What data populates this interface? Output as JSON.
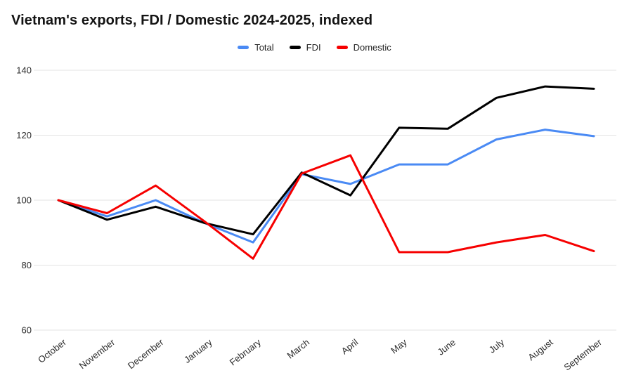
{
  "title": "Vietnam's exports, FDI / Domestic 2024-2025, indexed",
  "colors": {
    "background": "#ffffff",
    "grid": "#e3e3e3",
    "tick": "#2b2b2b",
    "title": "#141414",
    "total": "#4a8af4",
    "fdi": "#000000",
    "domestic": "#f60000"
  },
  "chart_data": {
    "type": "line",
    "title": "Vietnam's exports, FDI / Domestic 2024-2025, indexed",
    "xlabel": "",
    "ylabel": "",
    "categories": [
      "October",
      "November",
      "December",
      "January",
      "February",
      "March",
      "April",
      "May",
      "June",
      "July",
      "August",
      "September"
    ],
    "series": [
      {
        "name": "Total",
        "color": "#4a8af4",
        "values": [
          100,
          95,
          100,
          93,
          87,
          108,
          105,
          111,
          111,
          118.7,
          121.7,
          119.7
        ]
      },
      {
        "name": "FDI",
        "color": "#000000",
        "values": [
          100,
          94,
          98,
          93,
          89.5,
          108.5,
          101.5,
          122.3,
          122,
          131.5,
          135,
          134.3
        ]
      },
      {
        "name": "Domestic",
        "color": "#f60000",
        "values": [
          100,
          96,
          104.5,
          93.5,
          82,
          108.2,
          113.8,
          84,
          84,
          87,
          89.3,
          84.3
        ]
      }
    ],
    "yticks": [
      140,
      120,
      100,
      80,
      60
    ],
    "ylim": [
      60,
      140
    ],
    "grid": true,
    "legend_position": "top-center",
    "x_tick_rotation_deg": -38
  }
}
